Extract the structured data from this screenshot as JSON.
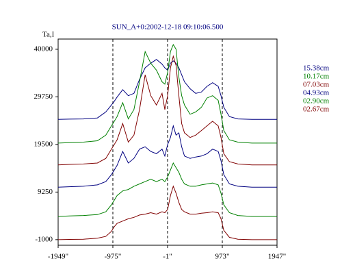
{
  "chart_data": {
    "type": "line",
    "title": "SUN_A+0:2002-12-18 09:10:06.500",
    "ylabel": "Ta,I",
    "x": [
      -1949,
      -1750,
      -1500,
      -1250,
      -1100,
      -1000,
      -950,
      -900,
      -800,
      -700,
      -600,
      -500,
      -400,
      -300,
      -200,
      -100,
      -50,
      0,
      50,
      100,
      150,
      200,
      250,
      300,
      400,
      500,
      600,
      700,
      800,
      900,
      950,
      1000,
      1100,
      1250,
      1500,
      1750,
      1947
    ],
    "series": [
      {
        "name": "15.38cm",
        "color": "#000080",
        "values": [
          24900,
          24950,
          25000,
          25200,
          26500,
          28000,
          28800,
          29700,
          31300,
          30000,
          30500,
          33500,
          36000,
          37000,
          37800,
          36800,
          36000,
          35500,
          37000,
          37500,
          37000,
          36000,
          34500,
          33000,
          31500,
          30500,
          30800,
          32000,
          32800,
          32000,
          30000,
          27500,
          25500,
          25000,
          24900,
          24900,
          24900
        ]
      },
      {
        "name": "10.17cm",
        "color": "#008000",
        "values": [
          19800,
          19900,
          20000,
          20300,
          21500,
          23500,
          24500,
          25500,
          28500,
          25000,
          27000,
          33000,
          39500,
          37000,
          35500,
          33000,
          32500,
          35000,
          39500,
          41000,
          40000,
          34000,
          30000,
          28000,
          26000,
          26500,
          27500,
          29500,
          30000,
          29000,
          26000,
          22500,
          20500,
          20000,
          19800,
          19800,
          19800
        ]
      },
      {
        "name": "07.03cm",
        "color": "#800000",
        "values": [
          15100,
          15200,
          15300,
          15500,
          16500,
          18500,
          19500,
          20500,
          24000,
          20000,
          21500,
          27000,
          34500,
          30000,
          28000,
          30500,
          27000,
          30000,
          36000,
          38500,
          36500,
          30000,
          24000,
          22000,
          21000,
          21500,
          22500,
          23500,
          24500,
          23500,
          21000,
          17500,
          15800,
          15300,
          15100,
          15100,
          15100
        ]
      },
      {
        "name": "04.93cm",
        "color": "#000080",
        "values": [
          10300,
          10400,
          10500,
          10800,
          11500,
          13000,
          14000,
          15000,
          18000,
          15500,
          16500,
          18500,
          19000,
          18000,
          17500,
          18500,
          17000,
          19500,
          21000,
          23500,
          21500,
          22000,
          19000,
          17000,
          16500,
          16800,
          17000,
          17500,
          18500,
          18000,
          16000,
          13000,
          11000,
          10500,
          10300,
          10300,
          10300
        ]
      },
      {
        "name": "02.90cm",
        "color": "#008000",
        "values": [
          4000,
          4100,
          4200,
          4400,
          5000,
          6500,
          7500,
          8500,
          9500,
          9800,
          10500,
          11000,
          11500,
          12000,
          11500,
          12000,
          11500,
          12500,
          14000,
          15500,
          14500,
          13500,
          12000,
          11000,
          10500,
          10500,
          10800,
          11000,
          11200,
          10800,
          9000,
          6500,
          4800,
          4200,
          4000,
          4000,
          4000
        ]
      },
      {
        "name": "02.67cm",
        "color": "#800000",
        "values": [
          -1000,
          -950,
          -900,
          -700,
          -300,
          800,
          1800,
          2500,
          3000,
          3500,
          3800,
          4300,
          4500,
          4800,
          4500,
          5000,
          4800,
          5500,
          8500,
          10500,
          9000,
          7000,
          5500,
          5000,
          4500,
          4500,
          4700,
          4800,
          5000,
          4800,
          3500,
          1000,
          -500,
          -900,
          -1000,
          -1000,
          -1000
        ]
      }
    ],
    "xlim": [
      -1949,
      1947
    ],
    "xticks": [
      {
        "value": -1949,
        "label": "-1949\""
      },
      {
        "value": -975,
        "label": "-975\""
      },
      {
        "value": -1,
        "label": "-1\""
      },
      {
        "value": 973,
        "label": "973\""
      },
      {
        "value": 1947,
        "label": "1947\""
      }
    ],
    "ylim": [
      -2200,
      42200
    ],
    "yticks": [
      40000,
      29750,
      19500,
      9250,
      -1000
    ],
    "vlines": [
      -975,
      -1,
      973
    ]
  }
}
